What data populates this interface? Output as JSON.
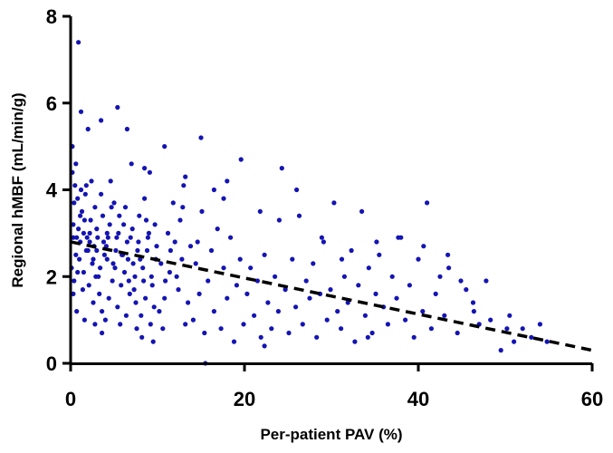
{
  "chart_data": {
    "type": "scatter",
    "xlabel": "Per-patient PAV (%)",
    "ylabel": "Regional hMBF (mL/min/g)",
    "xlim": [
      0,
      60
    ],
    "ylim": [
      0,
      8
    ],
    "x_ticks": [
      "0",
      "20",
      "40",
      "60"
    ],
    "y_ticks": [
      "0",
      "2",
      "4",
      "6",
      "8"
    ],
    "marker_color": "#1414b4",
    "trend_line": {
      "style": "dashed",
      "color": "#000000",
      "x": [
        0,
        60
      ],
      "y": [
        2.8,
        0.3
      ]
    },
    "series": [
      {
        "points": [
          [
            0.3,
            3.2
          ],
          [
            0.6,
            2.5
          ],
          [
            0.2,
            4.4
          ],
          [
            0.8,
            3.8
          ],
          [
            0.4,
            1.9
          ],
          [
            0.7,
            2.9
          ],
          [
            0.1,
            2.2
          ],
          [
            0.9,
            3.1
          ],
          [
            0.5,
            4.1
          ],
          [
            0.3,
            1.6
          ],
          [
            1.1,
            2.8
          ],
          [
            1.3,
            3.5
          ],
          [
            1.5,
            2.1
          ],
          [
            1.2,
            4.0
          ],
          [
            1.8,
            2.6
          ],
          [
            1.6,
            3.3
          ],
          [
            1.4,
            1.7
          ],
          [
            1.9,
            2.9
          ],
          [
            1.7,
            3.9
          ],
          [
            1.0,
            2.4
          ],
          [
            2.2,
            3.0
          ],
          [
            2.5,
            2.3
          ],
          [
            2.8,
            3.6
          ],
          [
            2.1,
            1.8
          ],
          [
            2.7,
            2.7
          ],
          [
            2.4,
            4.2
          ],
          [
            2.9,
            2.0
          ],
          [
            2.3,
            3.3
          ],
          [
            2.6,
            1.4
          ],
          [
            2.0,
            2.6
          ],
          [
            3.1,
            2.9
          ],
          [
            3.4,
            2.2
          ],
          [
            3.7,
            3.4
          ],
          [
            3.3,
            1.6
          ],
          [
            3.9,
            2.5
          ],
          [
            3.5,
            3.9
          ],
          [
            3.2,
            2.0
          ],
          [
            3.8,
            2.8
          ],
          [
            3.6,
            1.2
          ],
          [
            3.0,
            3.1
          ],
          [
            4.2,
            2.4
          ],
          [
            4.5,
            3.2
          ],
          [
            4.8,
            1.9
          ],
          [
            4.1,
            2.7
          ],
          [
            4.7,
            3.6
          ],
          [
            4.4,
            1.5
          ],
          [
            4.9,
            2.3
          ],
          [
            4.3,
            2.9
          ],
          [
            4.6,
            4.2
          ],
          [
            4.0,
            1.0
          ],
          [
            5.2,
            2.6
          ],
          [
            5.5,
            3.0
          ],
          [
            5.8,
            1.8
          ],
          [
            5.1,
            2.2
          ],
          [
            5.6,
            3.4
          ],
          [
            5.4,
            1.3
          ],
          [
            5.9,
            2.5
          ],
          [
            5.3,
            2.9
          ],
          [
            5.7,
            0.9
          ],
          [
            5.0,
            3.7
          ],
          [
            6.2,
            2.1
          ],
          [
            6.5,
            2.8
          ],
          [
            6.8,
            1.6
          ],
          [
            6.1,
            3.2
          ],
          [
            6.6,
            2.4
          ],
          [
            6.4,
            1.1
          ],
          [
            6.9,
            2.9
          ],
          [
            6.3,
            3.6
          ],
          [
            6.7,
            1.9
          ],
          [
            6.0,
            2.5
          ],
          [
            7.2,
            2.3
          ],
          [
            7.5,
            1.4
          ],
          [
            7.8,
            2.8
          ],
          [
            7.1,
            3.1
          ],
          [
            7.6,
            0.8
          ],
          [
            7.4,
            2.0
          ],
          [
            7.9,
            3.4
          ],
          [
            7.3,
            1.7
          ],
          [
            7.7,
            2.6
          ],
          [
            7.0,
            4.6
          ],
          [
            8.3,
            2.2
          ],
          [
            8.6,
            1.5
          ],
          [
            8.9,
            2.9
          ],
          [
            8.2,
            0.6
          ],
          [
            8.7,
            3.3
          ],
          [
            8.4,
            1.9
          ],
          [
            8.8,
            2.6
          ],
          [
            8.1,
            1.1
          ],
          [
            8.5,
            3.8
          ],
          [
            8.0,
            2.4
          ],
          [
            9.3,
            2.0
          ],
          [
            9.6,
            1.3
          ],
          [
            9.9,
            2.7
          ],
          [
            9.2,
            0.9
          ],
          [
            9.7,
            3.2
          ],
          [
            9.4,
            1.8
          ],
          [
            9.8,
            2.4
          ],
          [
            9.1,
            4.4
          ],
          [
            9.5,
            0.5
          ],
          [
            9.0,
            3.0
          ],
          [
            10.4,
            2.3
          ],
          [
            10.8,
            1.5
          ],
          [
            11.2,
            3.0
          ],
          [
            10.6,
            0.8
          ],
          [
            11.5,
            2.6
          ],
          [
            10.9,
            1.9
          ],
          [
            11.8,
            3.7
          ],
          [
            10.2,
            1.2
          ],
          [
            11.4,
            2.1
          ],
          [
            12.0,
            2.8
          ],
          [
            12.4,
            1.7
          ],
          [
            12.8,
            2.4
          ],
          [
            13.2,
            0.9
          ],
          [
            12.6,
            3.3
          ],
          [
            13.5,
            1.4
          ],
          [
            12.2,
            2.0
          ],
          [
            13.8,
            2.7
          ],
          [
            13.0,
            4.1
          ],
          [
            14.1,
            1.0
          ],
          [
            14.4,
            2.3
          ],
          [
            14.8,
            1.6
          ],
          [
            15.1,
            3.5
          ],
          [
            15.4,
            0.7
          ],
          [
            14.6,
            2.8
          ],
          [
            15.8,
            1.9
          ],
          [
            15.5,
            0.0
          ],
          [
            16.2,
            2.6
          ],
          [
            16.5,
            1.2
          ],
          [
            16.9,
            3.1
          ],
          [
            17.3,
            0.8
          ],
          [
            17.6,
            2.2
          ],
          [
            18.0,
            1.5
          ],
          [
            18.4,
            2.9
          ],
          [
            18.8,
            0.5
          ],
          [
            19.1,
            1.8
          ],
          [
            19.5,
            2.4
          ],
          [
            19.9,
            0.9
          ],
          [
            20.3,
            1.6
          ],
          [
            20.7,
            2.2
          ],
          [
            21.1,
            1.1
          ],
          [
            21.5,
            1.9
          ],
          [
            21.9,
            0.6
          ],
          [
            22.3,
            2.5
          ],
          [
            22.7,
            1.4
          ],
          [
            23.1,
            0.8
          ],
          [
            23.5,
            2.0
          ],
          [
            23.9,
            1.2
          ],
          [
            24.3,
            4.5
          ],
          [
            24.7,
            1.7
          ],
          [
            25.1,
            0.7
          ],
          [
            25.5,
            2.4
          ],
          [
            25.9,
            1.3
          ],
          [
            26.3,
            3.4
          ],
          [
            26.7,
            0.9
          ],
          [
            27.1,
            1.9
          ],
          [
            27.5,
            1.5
          ],
          [
            27.9,
            2.3
          ],
          [
            28.3,
            0.6
          ],
          [
            28.7,
            1.6
          ],
          [
            29.1,
            2.8
          ],
          [
            29.5,
            1.0
          ],
          [
            29.9,
            1.7
          ],
          [
            30.3,
            3.7
          ],
          [
            30.7,
            1.2
          ],
          [
            31.1,
            0.8
          ],
          [
            31.5,
            2.0
          ],
          [
            31.9,
            1.4
          ],
          [
            32.3,
            2.6
          ],
          [
            32.7,
            0.5
          ],
          [
            33.1,
            1.8
          ],
          [
            33.5,
            3.5
          ],
          [
            33.9,
            1.1
          ],
          [
            34.3,
            2.2
          ],
          [
            34.7,
            0.7
          ],
          [
            35.1,
            1.6
          ],
          [
            35.5,
            2.5
          ],
          [
            36.0,
            1.3
          ],
          [
            36.5,
            0.9
          ],
          [
            37.0,
            2.0
          ],
          [
            37.5,
            1.5
          ],
          [
            38.0,
            2.9
          ],
          [
            38.5,
            1.0
          ],
          [
            39.0,
            1.8
          ],
          [
            39.5,
            0.6
          ],
          [
            40.0,
            2.4
          ],
          [
            40.5,
            1.2
          ],
          [
            41.0,
            3.7
          ],
          [
            41.5,
            0.8
          ],
          [
            42.0,
            1.6
          ],
          [
            42.5,
            2.0
          ],
          [
            43.0,
            1.1
          ],
          [
            43.5,
            2.2
          ],
          [
            44.5,
            0.7
          ],
          [
            45.5,
            1.7
          ],
          [
            46.3,
            1.4
          ],
          [
            47.0,
            0.9
          ],
          [
            47.8,
            1.9
          ],
          [
            49.5,
            0.3
          ],
          [
            50.5,
            1.1
          ],
          [
            51.0,
            0.5
          ],
          [
            52.0,
            0.8
          ],
          [
            53.0,
            0.6
          ],
          [
            54.0,
            0.9
          ],
          [
            54.8,
            0.5
          ],
          [
            0.9,
            7.4
          ],
          [
            5.4,
            5.9
          ],
          [
            2.0,
            5.4
          ],
          [
            1.2,
            5.8
          ],
          [
            15.0,
            5.2
          ],
          [
            19.6,
            4.7
          ],
          [
            6.5,
            5.4
          ],
          [
            3.5,
            5.6
          ],
          [
            0.2,
            5.0
          ],
          [
            0.6,
            4.6
          ],
          [
            10.8,
            5.0
          ],
          [
            13.2,
            4.3
          ],
          [
            18.0,
            4.2
          ],
          [
            8.5,
            4.5
          ],
          [
            0.4,
            3.7
          ],
          [
            0.8,
            2.1
          ],
          [
            1.5,
            3.0
          ],
          [
            2.2,
            2.8
          ],
          [
            3.0,
            2.6
          ],
          [
            1.8,
            4.1
          ],
          [
            0.3,
            2.9
          ],
          [
            1.1,
            3.4
          ],
          [
            2.6,
            2.4
          ],
          [
            4.2,
            3.0
          ],
          [
            0.7,
            1.2
          ],
          [
            1.6,
            1.0
          ],
          [
            2.8,
            0.9
          ],
          [
            3.6,
            0.7
          ],
          [
            16.5,
            4.0
          ],
          [
            21.8,
            3.5
          ],
          [
            26.0,
            4.0
          ],
          [
            28.9,
            2.9
          ],
          [
            35.2,
            2.8
          ],
          [
            37.7,
            2.9
          ],
          [
            40.6,
            2.7
          ],
          [
            43.4,
            2.5
          ],
          [
            12.9,
            3.6
          ],
          [
            17.6,
            3.8
          ],
          [
            24.0,
            3.3
          ],
          [
            31.2,
            2.4
          ],
          [
            44.9,
            1.9
          ],
          [
            46.4,
            1.2
          ],
          [
            48.3,
            1.0
          ],
          [
            50.2,
            0.8
          ],
          [
            34.2,
            0.6
          ],
          [
            22.3,
            0.4
          ]
        ]
      }
    ]
  }
}
